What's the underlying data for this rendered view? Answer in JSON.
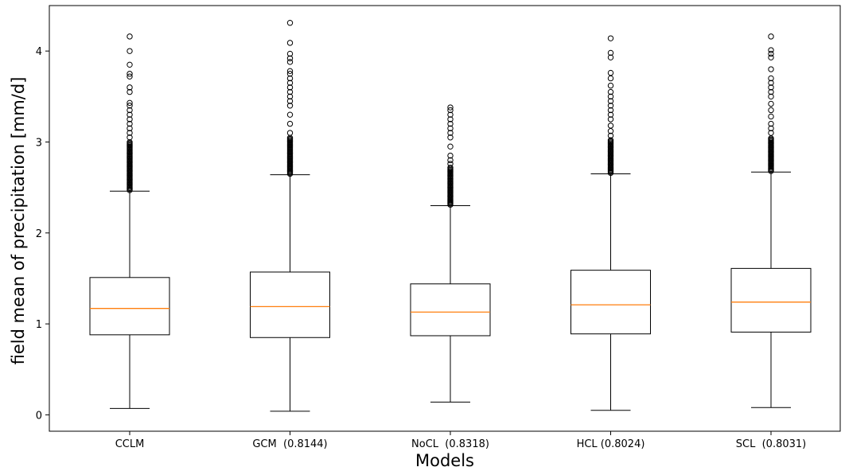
{
  "chart_data": {
    "type": "boxplot",
    "title": "",
    "xlabel": "Models",
    "ylabel": "field mean of precipitation [mm/d]",
    "ylim": [
      -0.18,
      4.5
    ],
    "yticks": [
      0,
      1,
      2,
      3,
      4
    ],
    "grid": false,
    "colors": {
      "box": "#000000",
      "median": "#ff7f0e",
      "flier": "#000000"
    },
    "categories": [
      "CCLM",
      "GCM  (0.8144)",
      "NoCL  (0.8318)",
      "HCL (0.8024)",
      "SCL  (0.8031)"
    ],
    "boxes": [
      {
        "label": "CCLM",
        "whisker_low": 0.07,
        "q1": 0.88,
        "median": 1.17,
        "q3": 1.51,
        "whisker_high": 2.46,
        "fliers_dense": [
          2.47,
          3.0
        ],
        "fliers": [
          3.05,
          3.1,
          3.15,
          3.2,
          3.25,
          3.3,
          3.35,
          3.4,
          3.43,
          3.55,
          3.6,
          3.72,
          3.75,
          3.85,
          4.0,
          4.16
        ]
      },
      {
        "label": "GCM  (0.8144)",
        "whisker_low": 0.04,
        "q1": 0.85,
        "median": 1.19,
        "q3": 1.57,
        "whisker_high": 2.64,
        "fliers_dense": [
          2.65,
          3.05
        ],
        "fliers": [
          3.1,
          3.2,
          3.3,
          3.4,
          3.45,
          3.5,
          3.55,
          3.6,
          3.65,
          3.7,
          3.75,
          3.78,
          3.88,
          3.92,
          3.97,
          4.09,
          4.31
        ]
      },
      {
        "label": "NoCL  (0.8318)",
        "whisker_low": 0.14,
        "q1": 0.87,
        "median": 1.13,
        "q3": 1.44,
        "whisker_high": 2.3,
        "fliers_dense": [
          2.31,
          2.72
        ],
        "fliers": [
          2.76,
          2.8,
          2.85,
          2.95,
          3.05,
          3.1,
          3.15,
          3.2,
          3.25,
          3.3,
          3.35,
          3.38
        ]
      },
      {
        "label": "HCL (0.8024)",
        "whisker_low": 0.05,
        "q1": 0.89,
        "median": 1.21,
        "q3": 1.59,
        "whisker_high": 2.65,
        "fliers_dense": [
          2.66,
          3.02
        ],
        "fliers": [
          3.07,
          3.12,
          3.18,
          3.25,
          3.3,
          3.35,
          3.4,
          3.45,
          3.5,
          3.55,
          3.62,
          3.7,
          3.76,
          3.93,
          3.98,
          4.14
        ]
      },
      {
        "label": "SCL  (0.8031)",
        "whisker_low": 0.08,
        "q1": 0.91,
        "median": 1.24,
        "q3": 1.61,
        "whisker_high": 2.67,
        "fliers_dense": [
          2.68,
          3.05
        ],
        "fliers": [
          3.1,
          3.15,
          3.2,
          3.28,
          3.35,
          3.42,
          3.5,
          3.55,
          3.6,
          3.65,
          3.7,
          3.8,
          3.93,
          3.97,
          4.01,
          4.16
        ]
      }
    ]
  }
}
